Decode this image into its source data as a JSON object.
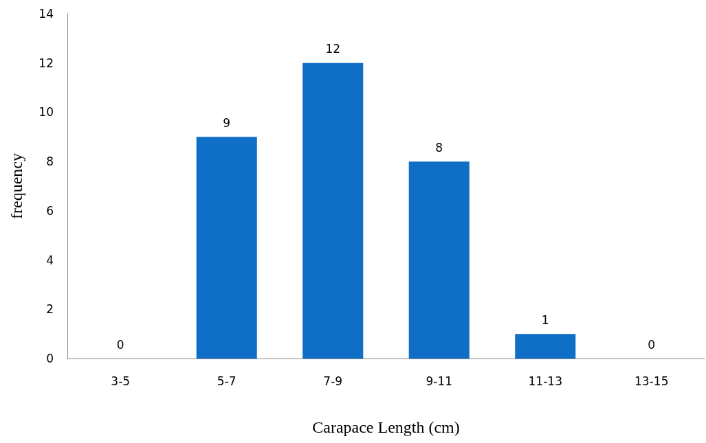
{
  "chart_data": {
    "type": "bar",
    "xlabel": "Carapace Length (cm)",
    "ylabel": "frequency",
    "categories": [
      "3-5",
      "5-7",
      "7-9",
      "9-11",
      "11-13",
      "13-15"
    ],
    "values": [
      0,
      9,
      12,
      8,
      1,
      0
    ],
    "color": "#0f6fc6",
    "ylim": [
      0,
      14
    ],
    "yticks": [
      0,
      2,
      4,
      6,
      8,
      10,
      12,
      14
    ],
    "grid": false,
    "data_labels": true
  }
}
